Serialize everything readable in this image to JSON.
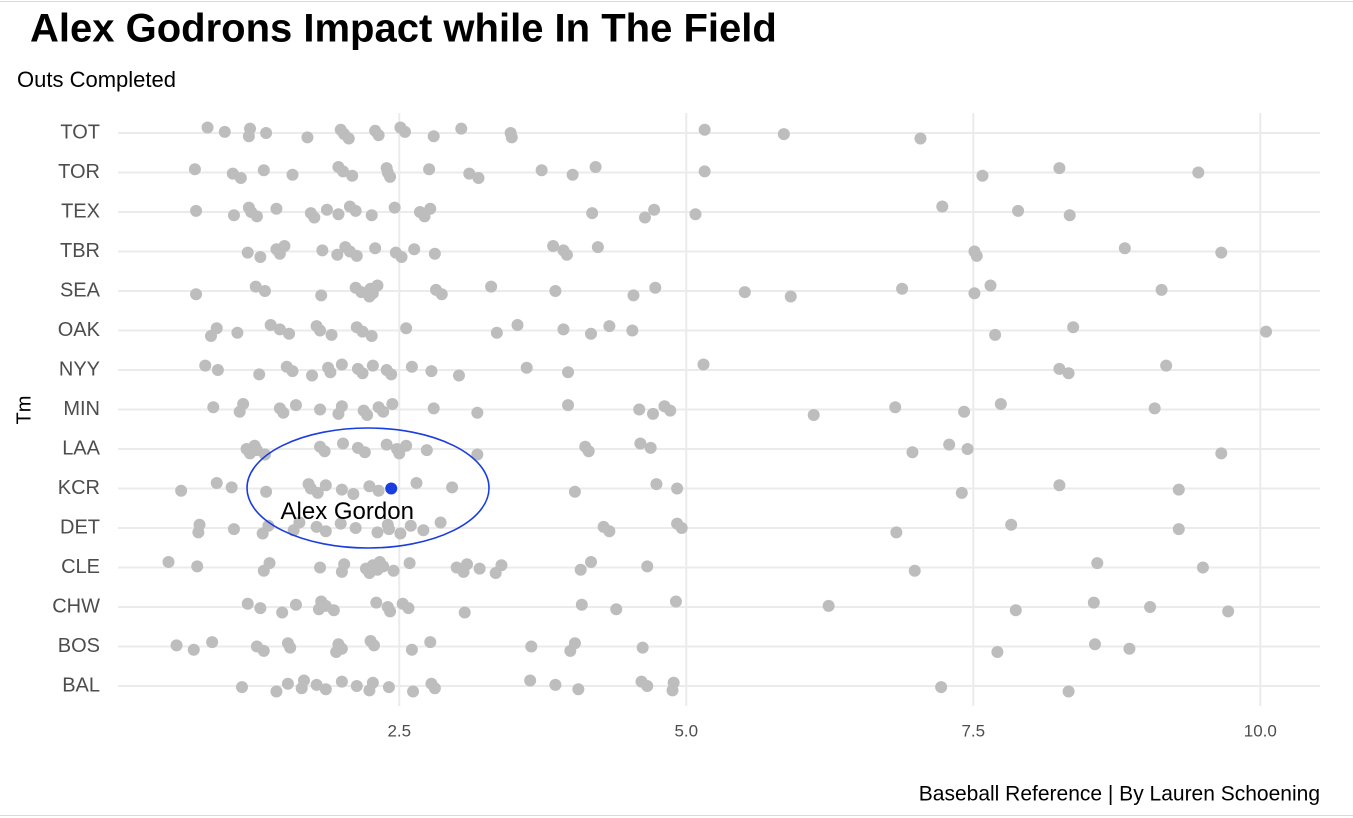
{
  "chart_data": {
    "type": "strip",
    "title": "Alex Godrons Impact while In The Field",
    "subtitle": "Outs Completed",
    "y_label": "Tm",
    "caption": "Baseball Reference | By Lauren Schoening",
    "point_color": "#bdbdbd",
    "grid": true,
    "xlim": [
      0.05,
      10.52
    ],
    "xticks": [
      2.5,
      {
        "value": 5.0,
        "label": "5.0"
      },
      7.5,
      {
        "value": 10.0,
        "label": "10.0"
      }
    ],
    "categories": [
      "TOT",
      "TOR",
      "TEX",
      "TBR",
      "SEA",
      "OAK",
      "NYY",
      "MIN",
      "LAA",
      "KCR",
      "DET",
      "CLE",
      "CHW",
      "BOS",
      "BAL"
    ],
    "values": [
      [
        0.83,
        0.98,
        1.19,
        1.2,
        1.34,
        1.7,
        1.99,
        2.02,
        2.06,
        2.29,
        2.32,
        2.51,
        2.55,
        2.8,
        3.04,
        3.47,
        3.48,
        5.16,
        5.85,
        7.04
      ],
      [
        0.72,
        1.05,
        1.12,
        1.32,
        1.57,
        1.97,
        2.01,
        2.09,
        2.39,
        2.4,
        2.42,
        2.76,
        3.11,
        3.19,
        3.74,
        4.01,
        4.21,
        5.16,
        7.58,
        8.25,
        9.46
      ],
      [
        0.73,
        1.06,
        1.19,
        1.21,
        1.26,
        1.43,
        1.73,
        1.76,
        1.87,
        1.97,
        2.07,
        2.12,
        2.26,
        2.46,
        2.68,
        2.72,
        2.77,
        4.18,
        4.64,
        4.72,
        5.08,
        7.23,
        7.89,
        8.34
      ],
      [
        1.18,
        1.29,
        1.43,
        1.46,
        1.5,
        1.83,
        1.96,
        2.03,
        2.07,
        2.13,
        2.29,
        2.47,
        2.52,
        2.63,
        2.81,
        3.84,
        3.93,
        3.96,
        4.23,
        7.51,
        7.53,
        8.82,
        9.66
      ],
      [
        0.73,
        1.25,
        1.33,
        1.82,
        2.12,
        2.17,
        2.24,
        2.25,
        2.27,
        2.31,
        2.82,
        2.87,
        3.3,
        3.86,
        4.54,
        4.73,
        5.51,
        5.91,
        6.88,
        7.51,
        7.65,
        9.14
      ],
      [
        0.86,
        0.91,
        1.09,
        1.38,
        1.46,
        1.54,
        1.78,
        1.81,
        1.91,
        2.13,
        2.18,
        2.26,
        2.56,
        3.35,
        3.53,
        3.93,
        4.17,
        4.33,
        4.53,
        7.69,
        8.37,
        10.05
      ],
      [
        0.81,
        0.92,
        1.28,
        1.52,
        1.57,
        1.74,
        1.88,
        1.9,
        2.0,
        2.14,
        2.18,
        2.27,
        2.39,
        2.43,
        2.61,
        2.78,
        3.02,
        3.61,
        3.97,
        5.15,
        8.25,
        8.33,
        9.18
      ],
      [
        0.88,
        1.11,
        1.14,
        1.46,
        1.49,
        1.6,
        1.81,
        1.97,
        2.0,
        2.19,
        2.22,
        2.32,
        2.36,
        2.44,
        2.8,
        3.18,
        3.97,
        4.59,
        4.71,
        4.81,
        4.86,
        6.11,
        6.82,
        7.42,
        7.74,
        9.08
      ],
      [
        1.17,
        1.2,
        1.24,
        1.26,
        1.33,
        1.81,
        1.85,
        2.01,
        2.14,
        2.2,
        2.39,
        2.48,
        2.5,
        2.56,
        2.74,
        3.18,
        4.12,
        4.15,
        4.6,
        4.69,
        6.97,
        7.29,
        7.45,
        9.66
      ],
      [
        0.6,
        0.91,
        1.04,
        1.34,
        1.71,
        1.73,
        1.79,
        1.86,
        2.0,
        2.1,
        2.24,
        2.32,
        2.65,
        2.96,
        4.03,
        4.74,
        4.92,
        7.4,
        8.25,
        9.29
      ],
      [
        0.75,
        0.76,
        1.06,
        1.31,
        1.36,
        1.58,
        1.63,
        1.78,
        1.86,
        1.99,
        2.12,
        2.31,
        2.4,
        2.41,
        2.51,
        2.6,
        2.71,
        2.86,
        4.28,
        4.33,
        4.92,
        4.96,
        6.83,
        7.83,
        9.29
      ],
      [
        0.49,
        0.74,
        1.32,
        1.37,
        1.81,
        2.0,
        2.02,
        2.21,
        2.24,
        2.27,
        2.31,
        2.33,
        2.36,
        2.45,
        2.59,
        3.0,
        3.06,
        3.09,
        3.2,
        3.34,
        3.39,
        4.08,
        4.17,
        4.66,
        6.99,
        8.58,
        9.5
      ],
      [
        1.18,
        1.29,
        1.48,
        1.6,
        1.8,
        1.82,
        1.86,
        1.93,
        2.3,
        2.4,
        2.42,
        2.53,
        2.58,
        3.07,
        4.09,
        4.39,
        4.91,
        6.24,
        7.87,
        8.55,
        9.04,
        9.72
      ],
      [
        0.56,
        0.71,
        0.87,
        1.26,
        1.32,
        1.53,
        1.55,
        1.95,
        1.97,
        2.0,
        2.25,
        2.28,
        2.61,
        2.77,
        3.65,
        3.99,
        4.03,
        4.62,
        7.71,
        8.56,
        8.86
      ],
      [
        1.13,
        1.43,
        1.53,
        1.65,
        1.67,
        1.78,
        1.86,
        2.0,
        2.13,
        2.24,
        2.27,
        2.41,
        2.62,
        2.78,
        2.81,
        3.64,
        3.86,
        4.06,
        4.61,
        4.66,
        4.88,
        4.89,
        7.22,
        8.33
      ]
    ],
    "highlight": {
      "category": "KCR",
      "value": 2.43,
      "label": "Alex Gordon",
      "color": "#1a3de0"
    }
  }
}
